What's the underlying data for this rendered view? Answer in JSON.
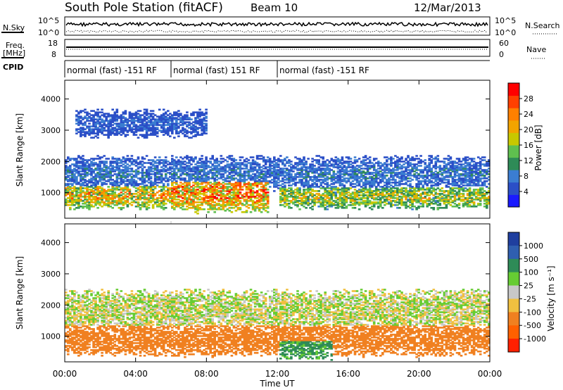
{
  "header": {
    "station": "South Pole Station (fitACF)",
    "beam": "Beam 10",
    "date": "12/Mar/2013"
  },
  "top_panels": {
    "nsky_label": "N.Sky",
    "nsearch_label": "N.Search",
    "nsky_ticks": [
      "10^5",
      "10^0"
    ],
    "nsearch_ticks": [
      "10^5",
      "10^0"
    ],
    "freq_label_1": "Freq.",
    "freq_label_2": "[MHz]",
    "freq_ticks": [
      "18",
      "8"
    ],
    "nave_label": "Nave",
    "nave_ticks": [
      "60",
      "0"
    ],
    "cpid_label": "CPID",
    "cpid_segments": [
      {
        "label": "normal (fast) -151 RF",
        "start_h": 0,
        "end_h": 6
      },
      {
        "label": "normal (fast) 151 RF",
        "start_h": 6,
        "end_h": 12
      },
      {
        "label": "normal (fast) -151 RF",
        "start_h": 12,
        "end_h": 24
      }
    ]
  },
  "x_axis": {
    "label": "Time UT",
    "ticks": [
      "00:00",
      "04:00",
      "08:00",
      "12:00",
      "16:00",
      "20:00",
      "00:00"
    ],
    "range_h": [
      0,
      24
    ]
  },
  "power_panel": {
    "ylabel": "Slant Range [km]",
    "yticks": [
      "1000",
      "2000",
      "3000",
      "4000"
    ],
    "cbar_label": "Power [dB]",
    "cbar_ticks": [
      "4",
      "8",
      "12",
      "16",
      "20",
      "24",
      "28"
    ],
    "cbar_colors": [
      "#1a1aff",
      "#2b4fc7",
      "#3b7dd1",
      "#2e8b57",
      "#5fbf4f",
      "#c8c800",
      "#f2a400",
      "#ff8000",
      "#ff4000",
      "#ff0000"
    ]
  },
  "velocity_panel": {
    "ylabel": "Slant Range [km]",
    "yticks": [
      "1000",
      "2000",
      "3000",
      "4000"
    ],
    "cbar_label": "Velocity [m s⁻¹]",
    "cbar_ticks": [
      "1000",
      "500",
      "100",
      "25",
      "-25",
      "-100",
      "-500",
      "-1000"
    ],
    "cbar_colors": [
      "#1f3f9f",
      "#2f5fb0",
      "#2e8b57",
      "#66cc33",
      "#c8c8c8",
      "#f0c040",
      "#f08020",
      "#ff6000",
      "#ff2000"
    ]
  },
  "chart_data": {
    "type": "heatmap",
    "x_unit": "hours UT",
    "y_unit": "slant range km",
    "ylim": [
      180,
      4600
    ],
    "xlim": [
      0,
      24
    ],
    "power_bands": [
      {
        "t0": 0.0,
        "t1": 6.0,
        "r_center": 900,
        "r_width": 400,
        "peak_db": 26
      },
      {
        "t0": 6.0,
        "t1": 11.5,
        "r_center": 1000,
        "r_width": 600,
        "peak_db": 30
      },
      {
        "t0": 12.0,
        "t1": 24.0,
        "r_center": 850,
        "r_width": 350,
        "peak_db": 22
      },
      {
        "t0": 0.0,
        "t1": 24.0,
        "r_center": 1600,
        "r_width": 500,
        "peak_db": 10
      },
      {
        "t0": 0.5,
        "t1": 8.0,
        "r_center": 3200,
        "r_width": 400,
        "peak_db": 8
      }
    ],
    "velocity_bands": [
      {
        "t0": 0.0,
        "t1": 24.0,
        "r_center": 900,
        "r_width": 500,
        "v_ms": -300
      },
      {
        "t0": 0.0,
        "t1": 24.0,
        "r_center": 1800,
        "r_width": 600,
        "v_ms": 0
      },
      {
        "t0": 12.0,
        "t1": 15.0,
        "r_center": 800,
        "r_width": 500,
        "v_ms": 150
      }
    ]
  }
}
